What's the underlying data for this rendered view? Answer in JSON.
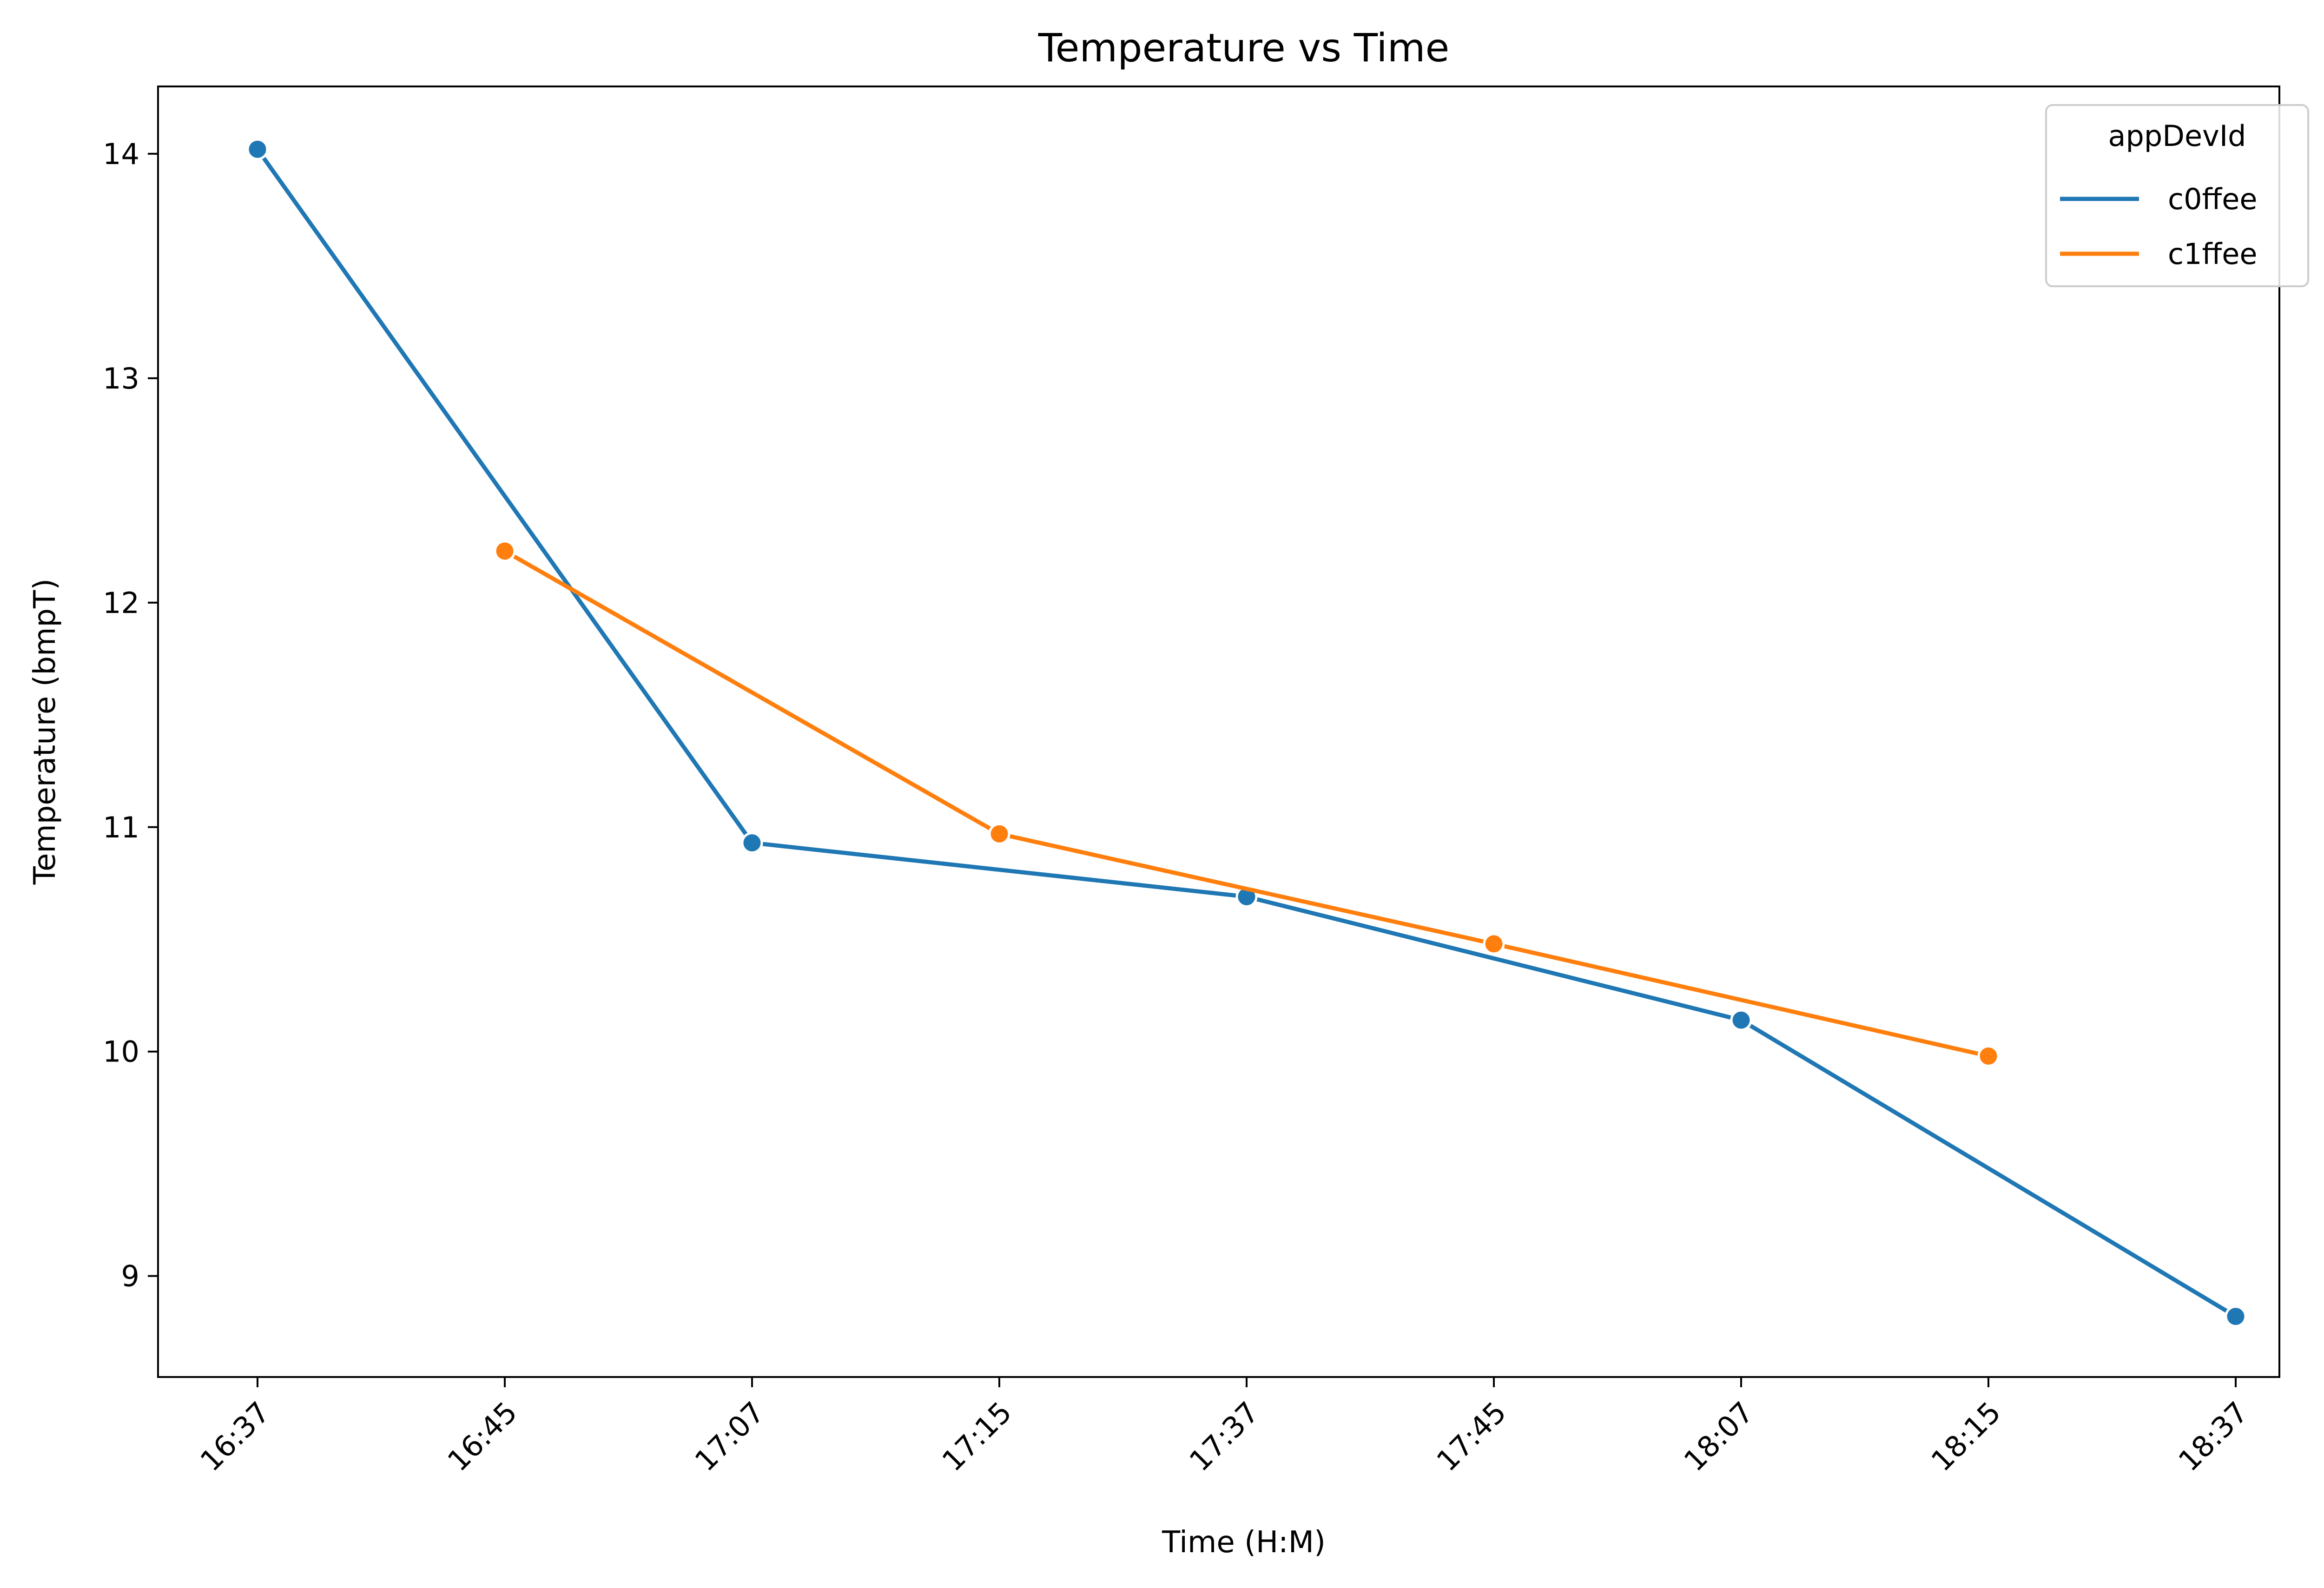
{
  "chart_data": {
    "type": "line",
    "title": "Temperature vs Time",
    "xlabel": "Time (H:M)",
    "ylabel": "Temperature (bmpT)",
    "categories": [
      "16:37",
      "16:45",
      "17:07",
      "17:15",
      "17:37",
      "17:45",
      "18:07",
      "18:15",
      "18:37"
    ],
    "yticks": [
      9,
      10,
      11,
      12,
      13,
      14
    ],
    "ylim": [
      8.55,
      14.3
    ],
    "grid": false,
    "legend": {
      "title": "appDevId",
      "position": "top-right"
    },
    "series": [
      {
        "name": "c0ffee",
        "color": "#1f77b4",
        "x": [
          "16:37",
          "17:07",
          "17:37",
          "18:07",
          "18:37"
        ],
        "values": [
          14.02,
          10.93,
          10.69,
          10.14,
          8.82
        ]
      },
      {
        "name": "c1ffee",
        "color": "#ff7f0e",
        "x": [
          "16:45",
          "17:15",
          "17:45",
          "18:15"
        ],
        "values": [
          12.23,
          10.97,
          10.48,
          9.98
        ]
      }
    ]
  }
}
